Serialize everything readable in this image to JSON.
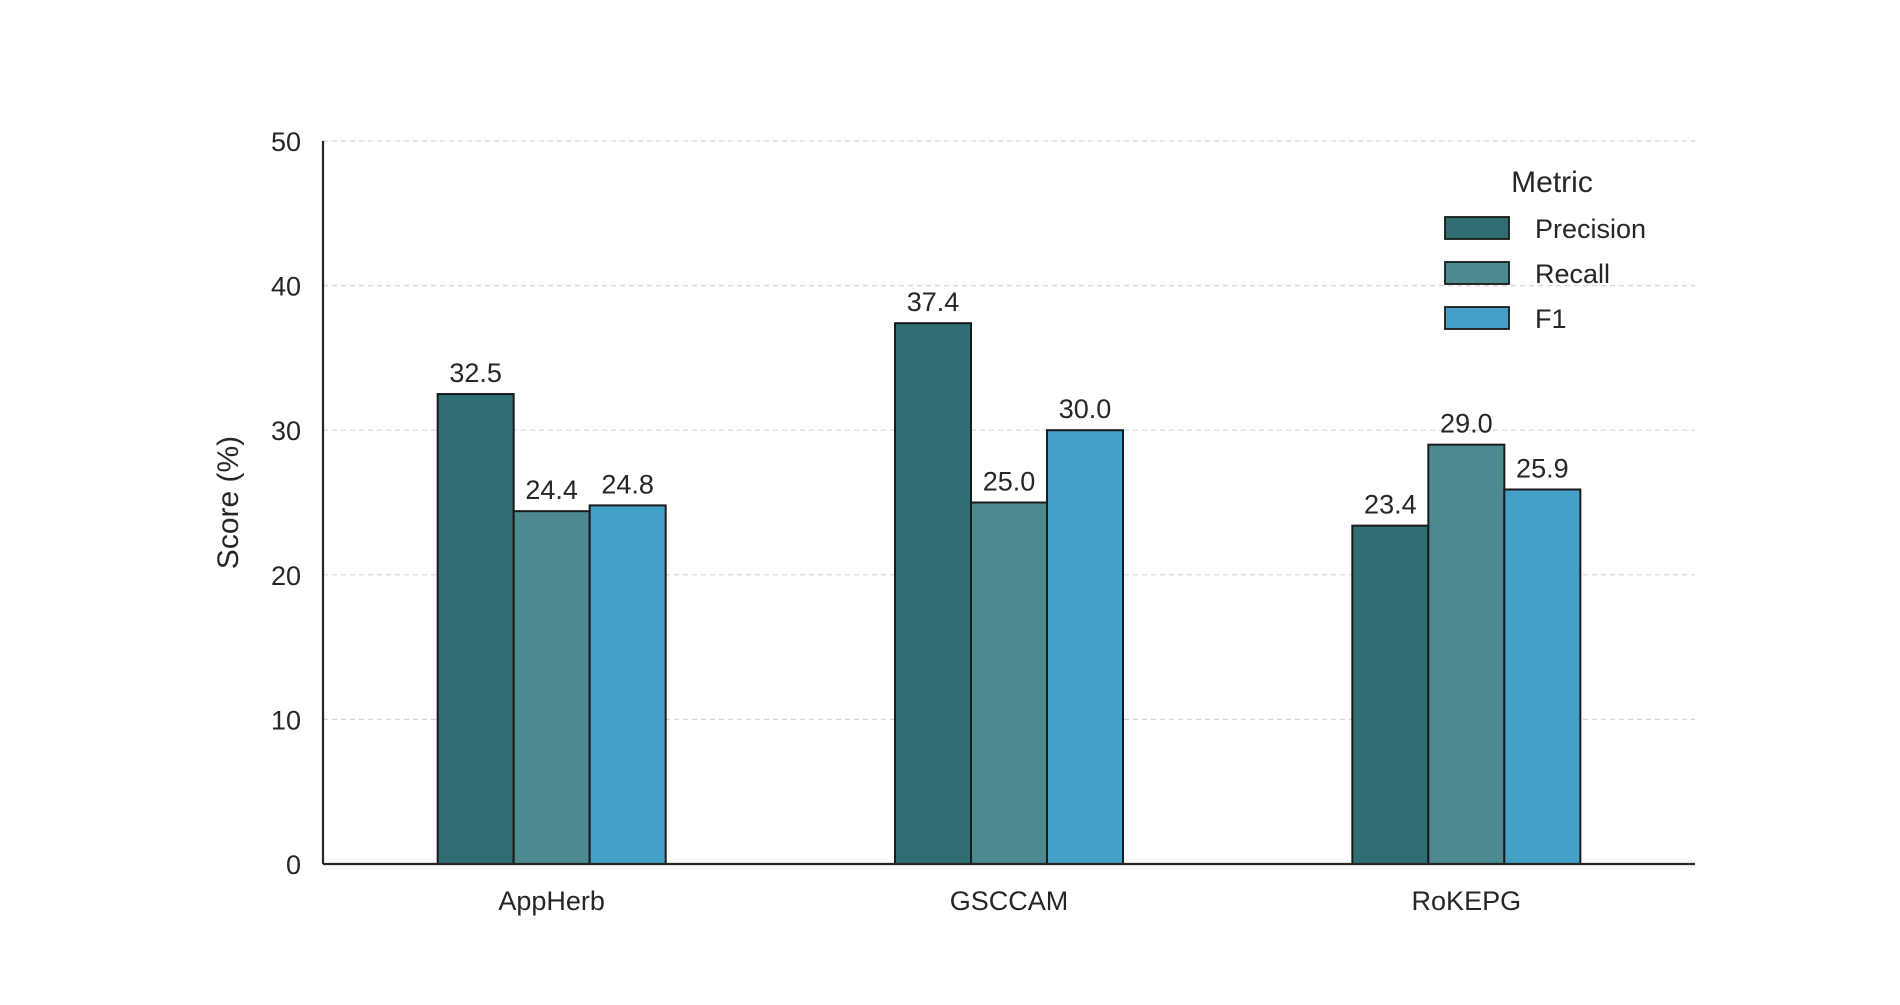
{
  "chart_data": {
    "type": "bar",
    "title": "",
    "xlabel": "",
    "ylabel": "Score (%)",
    "categories": [
      "AppHerb",
      "GSCCAM",
      "RoKEPG"
    ],
    "series": [
      {
        "name": "Precision",
        "color": "#316e74",
        "values": [
          32.5,
          37.4,
          23.4
        ]
      },
      {
        "name": "Recall",
        "color": "#4d8a90",
        "values": [
          24.4,
          25.0,
          29.0
        ]
      },
      {
        "name": "F1",
        "color": "#43a1c8",
        "values": [
          24.8,
          30.0,
          25.9
        ]
      }
    ],
    "value_labels": [
      [
        "32.5",
        "37.4",
        "23.4"
      ],
      [
        "24.4",
        "25.0",
        "29.0"
      ],
      [
        "24.8",
        "30.0",
        "25.9"
      ]
    ],
    "ylim": [
      0,
      50
    ],
    "yticks": [
      0,
      10,
      20,
      30,
      40,
      50
    ],
    "ytick_labels": [
      "0",
      "10",
      "20",
      "30",
      "40",
      "50"
    ],
    "grid": "horizontal dashed",
    "legend": {
      "title": "Metric",
      "placement": "top-right"
    }
  }
}
